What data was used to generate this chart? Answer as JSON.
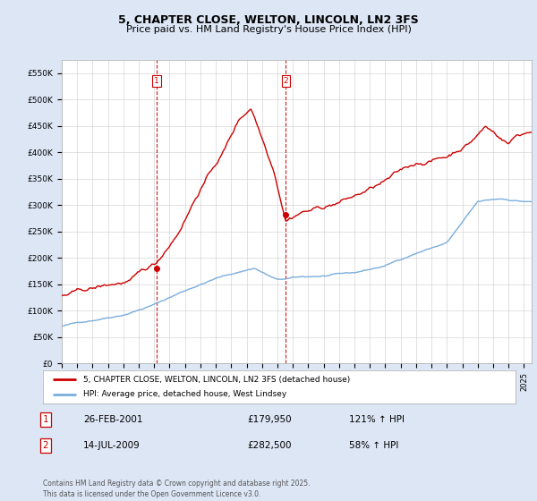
{
  "title": "5, CHAPTER CLOSE, WELTON, LINCOLN, LN2 3FS",
  "subtitle": "Price paid vs. HM Land Registry's House Price Index (HPI)",
  "title_fontsize": 9,
  "subtitle_fontsize": 8,
  "ylim": [
    0,
    575000
  ],
  "yticks": [
    0,
    50000,
    100000,
    150000,
    200000,
    250000,
    300000,
    350000,
    400000,
    450000,
    500000,
    550000
  ],
  "ytick_labels": [
    "£0",
    "£50K",
    "£100K",
    "£150K",
    "£200K",
    "£250K",
    "£300K",
    "£350K",
    "£400K",
    "£450K",
    "£500K",
    "£550K"
  ],
  "hpi_color": "#7aaddc",
  "property_color": "#cc0000",
  "vline_color": "#cc0000",
  "background_color": "#dce6f5",
  "plot_bg_color": "#ffffff",
  "grid_color": "#cccccc",
  "transaction1": {
    "date": "26-FEB-2001",
    "price": 179950,
    "label": "1",
    "pct": "121% ↑ HPI"
  },
  "transaction2": {
    "date": "14-JUL-2009",
    "price": 282500,
    "label": "2",
    "pct": "58% ↑ HPI"
  },
  "transaction1_x": 2001.15,
  "transaction2_x": 2009.54,
  "legend_property": "5, CHAPTER CLOSE, WELTON, LINCOLN, LN2 3FS (detached house)",
  "legend_hpi": "HPI: Average price, detached house, West Lindsey",
  "footer": "Contains HM Land Registry data © Crown copyright and database right 2025.\nThis data is licensed under the Open Government Licence v3.0.",
  "xmin": 1995,
  "xmax": 2025.5
}
